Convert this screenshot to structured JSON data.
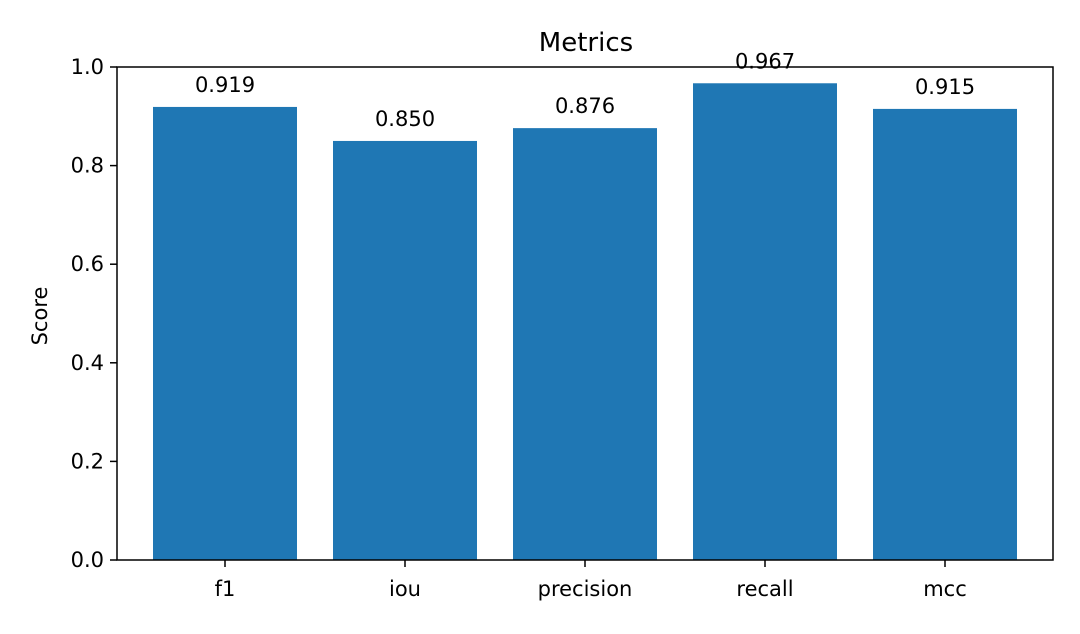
{
  "chart_data": {
    "type": "bar",
    "title": "Metrics",
    "xlabel": "",
    "ylabel": "Score",
    "categories": [
      "f1",
      "iou",
      "precision",
      "recall",
      "mcc"
    ],
    "values": [
      0.919,
      0.85,
      0.876,
      0.967,
      0.915
    ],
    "value_labels": [
      "0.919",
      "0.850",
      "0.876",
      "0.967",
      "0.915"
    ],
    "ylim": [
      0,
      1.0
    ],
    "yticks": [
      0.0,
      0.2,
      0.4,
      0.6,
      0.8,
      1.0
    ],
    "ytick_labels": [
      "0.0",
      "0.2",
      "0.4",
      "0.6",
      "0.8",
      "1.0"
    ],
    "grid": false,
    "legend": "none",
    "bar_color": "#1f77b4"
  }
}
